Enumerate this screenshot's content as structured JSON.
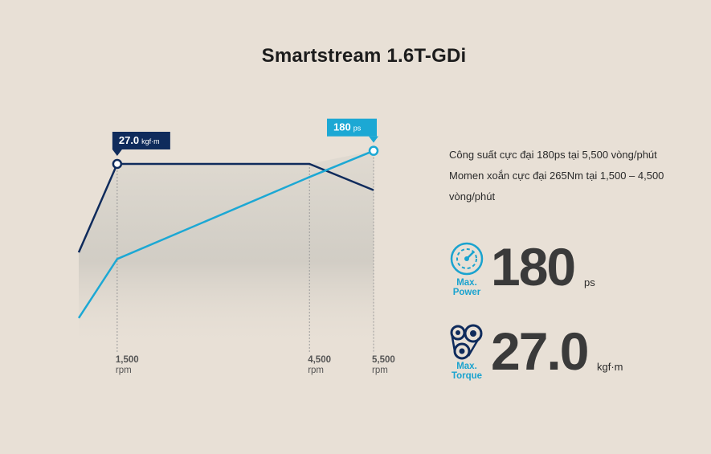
{
  "page": {
    "title": "Smartstream 1.6T-GDi",
    "description_lines": [
      "Công suất cực đại 180ps tại 5,500 vòng/phút",
      "Momen xoắn cực đại 265Nm tại 1,500 – 4,500",
      "vòng/phút"
    ],
    "colors": {
      "background": "#e8e0d6",
      "torque_line": "#0f2b5c",
      "power_line": "#1ca8d4",
      "value_text": "#3a3a3a",
      "label_blue": "#1aa3cf"
    }
  },
  "stats": {
    "power": {
      "icon": "speedometer-icon",
      "label_line1": "Max.",
      "label_line2": "Power",
      "value": "180",
      "unit": "ps"
    },
    "torque": {
      "icon": "belt-pulley-icon",
      "label_line1": "Max.",
      "label_line2": "Torque",
      "value": "27.0",
      "unit": "kgf·m"
    }
  },
  "chart_data": {
    "type": "line",
    "title": "Smartstream 1.6T-GDi",
    "xlabel": "",
    "ylabel": "",
    "x_ticks": [
      {
        "value": 1500,
        "label": "1,500",
        "unit": "rpm"
      },
      {
        "value": 4500,
        "label": "4,500",
        "unit": "rpm"
      },
      {
        "value": 5500,
        "label": "5,500",
        "unit": "rpm"
      }
    ],
    "series": [
      {
        "key": "torque",
        "x": [
          900,
          1500,
          4500,
          5500
        ],
        "y": [
          0.46,
          1.0,
          1.0,
          0.84
        ]
      },
      {
        "key": "power",
        "x": [
          900,
          1500,
          4500,
          5500
        ],
        "y": [
          0.06,
          0.42,
          0.92,
          1.08
        ]
      }
    ],
    "callouts": [
      {
        "series": "torque",
        "x": 1500,
        "value": "27.0",
        "unit": "kgf·m"
      },
      {
        "series": "power",
        "x": 5500,
        "value": "180",
        "unit": "ps"
      }
    ],
    "grid": false,
    "legend": "none"
  }
}
